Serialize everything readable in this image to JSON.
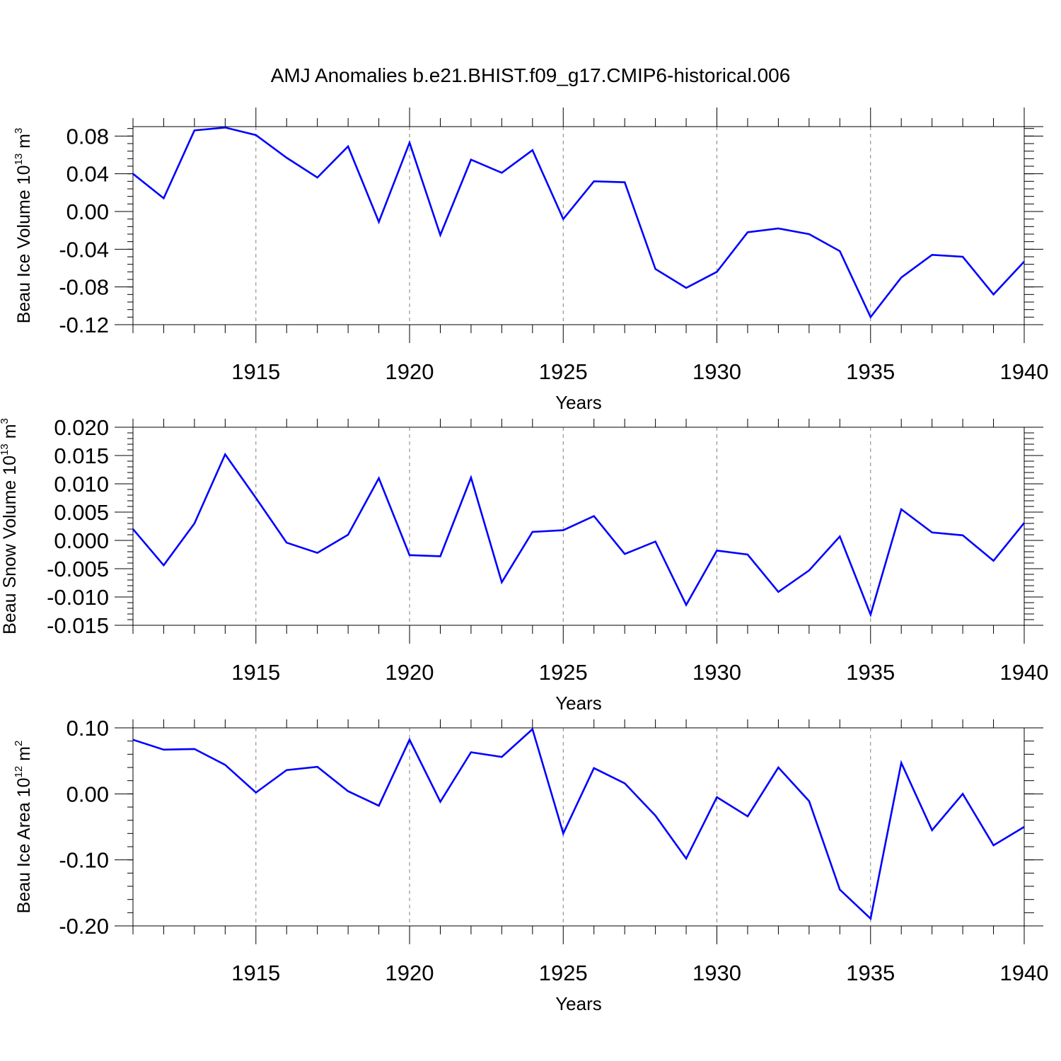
{
  "chart_data": {
    "title": "AMJ Anomalies b.e21.BHIST.f09_g17.CMIP6-historical.006",
    "panels": [
      {
        "type": "line",
        "xlabel": "Years",
        "ylabel": {
          "text": "Beau Ice Volume 10",
          "exponent": "13",
          "unit": " m",
          "unit_exponent": "3"
        },
        "xlim": [
          1911,
          1940
        ],
        "ylim": [
          -0.12,
          0.09
        ],
        "xticks": [
          "1915",
          "1920",
          "1925",
          "1930",
          "1935",
          "1940"
        ],
        "yticks": [
          "0.08",
          "0.04",
          "0.00",
          "-0.04",
          "-0.08",
          "-0.12"
        ],
        "line_color": "#0000ff",
        "series": [
          {
            "name": "Beau Ice Volume",
            "x": [
              1911,
              1912,
              1913,
              1914,
              1915,
              1916,
              1917,
              1918,
              1919,
              1920,
              1921,
              1922,
              1923,
              1924,
              1925,
              1926,
              1927,
              1928,
              1929,
              1930,
              1931,
              1932,
              1933,
              1934,
              1935,
              1936,
              1937,
              1938,
              1939,
              1940
            ],
            "values": [
              0.04,
              0.014,
              0.086,
              0.089,
              0.081,
              0.057,
              0.036,
              0.069,
              -0.011,
              0.073,
              -0.025,
              0.055,
              0.041,
              0.065,
              -0.008,
              0.032,
              0.031,
              -0.061,
              -0.081,
              -0.064,
              -0.022,
              -0.018,
              -0.024,
              -0.042,
              -0.112,
              -0.07,
              -0.046,
              -0.048,
              -0.088,
              -0.053
            ]
          }
        ]
      },
      {
        "type": "line",
        "xlabel": "Years",
        "ylabel": {
          "text": "Beau Snow Volume 10",
          "exponent": "13",
          "unit": " m",
          "unit_exponent": "3"
        },
        "xlim": [
          1911,
          1940
        ],
        "ylim": [
          -0.015,
          0.02
        ],
        "xticks": [
          "1915",
          "1920",
          "1925",
          "1930",
          "1935",
          "1940"
        ],
        "yticks": [
          "0.020",
          "0.015",
          "0.010",
          "0.005",
          "0.000",
          "-0.005",
          "-0.010",
          "-0.015"
        ],
        "line_color": "#0000ff",
        "series": [
          {
            "name": "Beau Snow Volume",
            "x": [
              1911,
              1912,
              1913,
              1914,
              1915,
              1916,
              1917,
              1918,
              1919,
              1920,
              1921,
              1922,
              1923,
              1924,
              1925,
              1926,
              1927,
              1928,
              1929,
              1930,
              1931,
              1932,
              1933,
              1934,
              1935,
              1936,
              1937,
              1938,
              1939,
              1940
            ],
            "values": [
              0.002,
              -0.0044,
              0.003,
              0.0152,
              0.0075,
              -0.0004,
              -0.0022,
              0.001,
              0.011,
              -0.0026,
              -0.0028,
              0.0111,
              -0.0074,
              0.0015,
              0.0018,
              0.0043,
              -0.0024,
              -0.0002,
              -0.0114,
              -0.0018,
              -0.0025,
              -0.0091,
              -0.0053,
              0.0007,
              -0.0131,
              0.0055,
              0.0014,
              0.0009,
              -0.0036,
              0.0031
            ]
          }
        ]
      },
      {
        "type": "line",
        "xlabel": "Years",
        "ylabel": {
          "text": "Beau Ice Area 10",
          "exponent": "12",
          "unit": " m",
          "unit_exponent": "2"
        },
        "xlim": [
          1911,
          1940
        ],
        "ylim": [
          -0.2,
          0.1
        ],
        "xticks": [
          "1915",
          "1920",
          "1925",
          "1930",
          "1935",
          "1940"
        ],
        "yticks": [
          "0.10",
          "0.00",
          "-0.10",
          "-0.20"
        ],
        "line_color": "#0000ff",
        "series": [
          {
            "name": "Beau Ice Area",
            "x": [
              1911,
              1912,
              1913,
              1914,
              1915,
              1916,
              1917,
              1918,
              1919,
              1920,
              1921,
              1922,
              1923,
              1924,
              1925,
              1926,
              1927,
              1928,
              1929,
              1930,
              1931,
              1932,
              1933,
              1934,
              1935,
              1936,
              1937,
              1938,
              1939,
              1940
            ],
            "values": [
              0.082,
              0.067,
              0.068,
              0.044,
              0.002,
              0.036,
              0.041,
              0.004,
              -0.018,
              0.082,
              -0.012,
              0.063,
              0.056,
              0.098,
              -0.06,
              0.039,
              0.016,
              -0.033,
              -0.098,
              -0.005,
              -0.034,
              0.04,
              -0.011,
              -0.145,
              -0.189,
              0.047,
              -0.055,
              0.0,
              -0.078,
              -0.05
            ]
          }
        ]
      }
    ]
  }
}
